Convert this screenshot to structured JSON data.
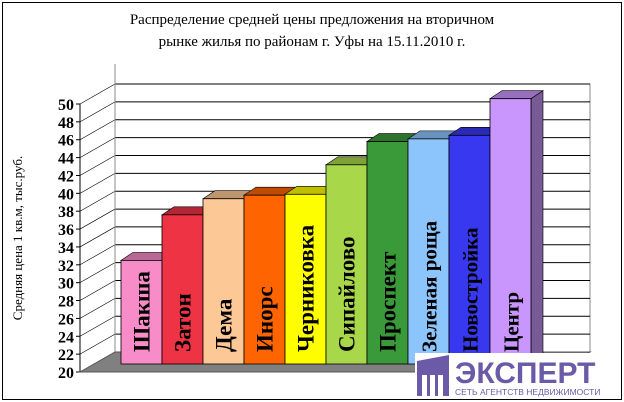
{
  "chart_data": {
    "type": "bar",
    "title_line1": "Распределение средней цены предложения на вторичном",
    "title_line2": "рынке жилья по районам г. Уфы на 15.11.2010 г.",
    "ylabel": "Средняя цена 1 кв.м, тыс.руб.",
    "xlabel": "",
    "ylim": [
      20,
      50
    ],
    "yticks": [
      "20",
      "22",
      "24",
      "26",
      "28",
      "30",
      "32",
      "34",
      "36",
      "38",
      "40",
      "42",
      "44",
      "46",
      "48",
      "50"
    ],
    "grid": true,
    "categories": [
      "Шакша",
      "Затон",
      "Дема",
      "Инорс",
      "Черниковка",
      "Сипайлово",
      "Проспект",
      "Зеленая роща",
      "Новостройка",
      "Центр"
    ],
    "values": [
      31.6,
      36.7,
      38.5,
      38.9,
      39.0,
      42.3,
      44.9,
      45.2,
      45.6,
      49.7
    ],
    "colors": [
      "#f78cc8",
      "#ee3344",
      "#fcc896",
      "#fe6400",
      "#fefe00",
      "#a8d84a",
      "#3a9a3a",
      "#8cc4fc",
      "#3838f0",
      "#c896fc"
    ]
  },
  "logo": {
    "name": "ЭКСПЕРТ",
    "tagline": "СЕТЬ АГЕНТСТВ НЕДВИЖИМОСТИ",
    "color": "#6a5aa8"
  }
}
